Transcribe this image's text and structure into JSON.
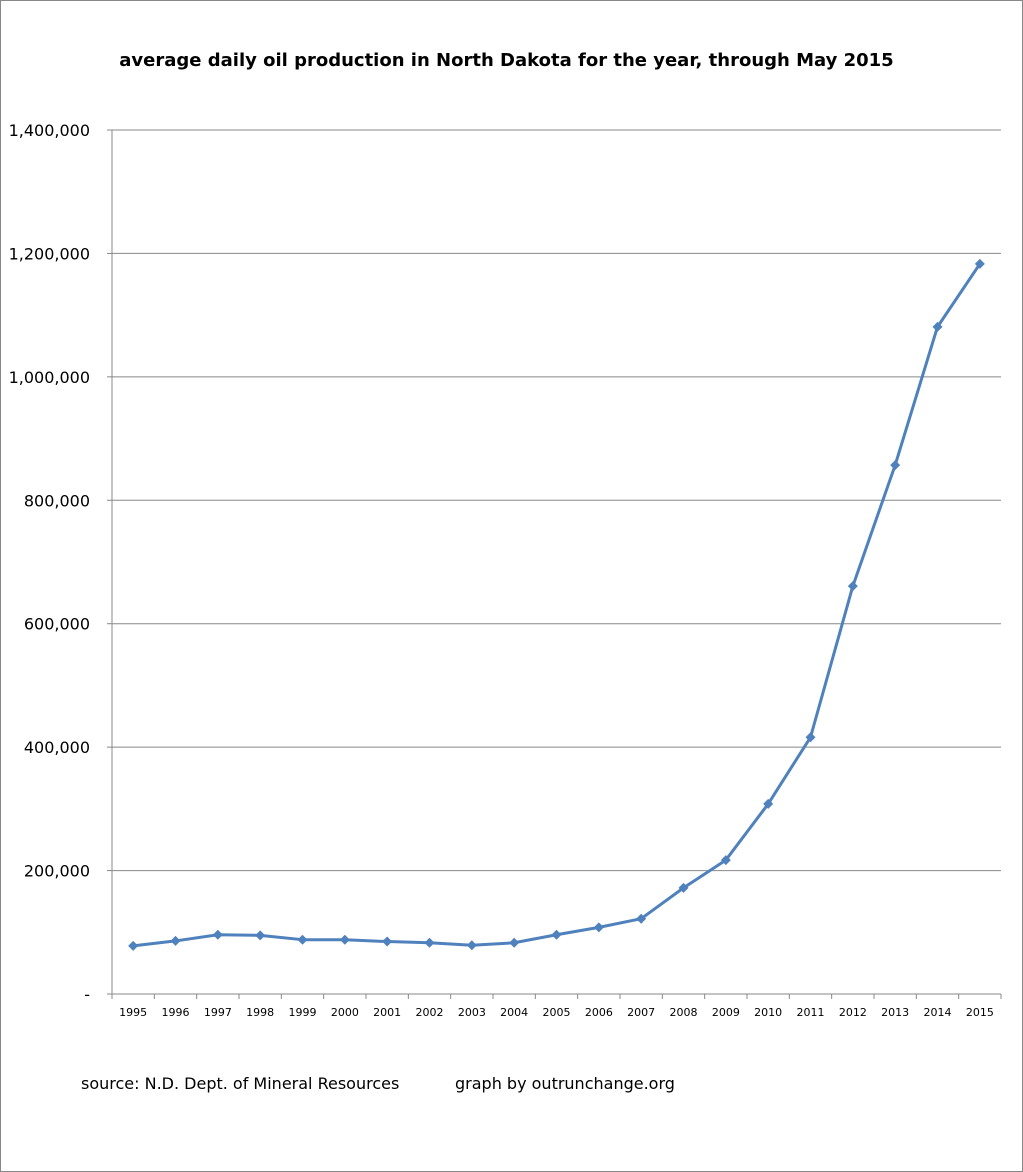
{
  "chart_data": {
    "type": "line",
    "title": "average daily oil production in North Dakota for the year, through May 2015",
    "xlabel": "",
    "ylabel": "",
    "categories": [
      "1995",
      "1996",
      "1997",
      "1998",
      "1999",
      "2000",
      "2001",
      "2002",
      "2003",
      "2004",
      "2005",
      "2006",
      "2007",
      "2008",
      "2009",
      "2010",
      "2011",
      "2012",
      "2013",
      "2014",
      "2015"
    ],
    "series": [
      {
        "name": "average daily oil production",
        "color": "#4F81BD",
        "values": [
          78000,
          86000,
          96000,
          95000,
          88000,
          88000,
          85000,
          83000,
          79000,
          83000,
          96000,
          108000,
          122000,
          172000,
          217000,
          308000,
          416000,
          661000,
          857000,
          1081000,
          1183000
        ]
      }
    ],
    "ylim": [
      0,
      1400000
    ],
    "yticks": [
      0,
      200000,
      400000,
      600000,
      800000,
      1000000,
      1200000,
      1400000
    ],
    "ytick_labels": [
      "-",
      "200,000",
      "400,000",
      "600,000",
      "800,000",
      "1,000,000",
      "1,200,000",
      "1,400,000"
    ],
    "grid": true,
    "legend": "none"
  },
  "footer": {
    "source": "source: N.D. Dept. of Mineral Resources",
    "credit": "graph by outrunchange.org"
  }
}
